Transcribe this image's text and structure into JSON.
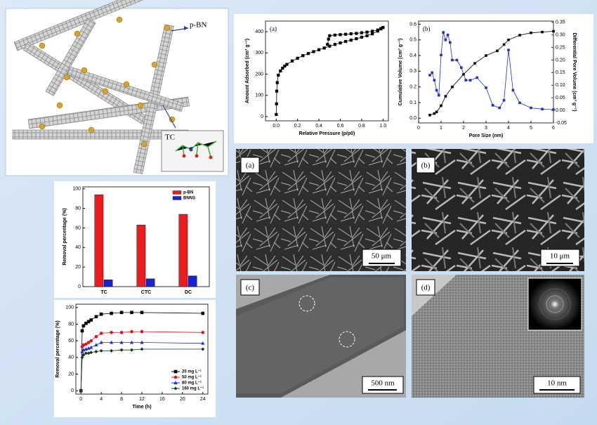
{
  "schematic": {
    "labels": [
      "p-BN",
      "TC"
    ]
  },
  "micrographs": [
    {
      "label": "(a)",
      "scale_bar": "50 μm"
    },
    {
      "label": "(b)",
      "scale_bar": "10 μm"
    },
    {
      "label": "(c)",
      "scale_bar": "500 nm"
    },
    {
      "label": "(d)",
      "scale_bar": "10 nm"
    }
  ],
  "chart_data": [
    {
      "type": "line",
      "label": "(a)",
      "xlabel": "Relative Pressure (p/p0)",
      "ylabel": "Amount Adsorbed (cm³ g⁻¹)",
      "xlim": [
        -0.1,
        1.05
      ],
      "xticks": [
        {
          "value": 0,
          "label": "0.0"
        },
        {
          "value": 0.2,
          "label": "0.2"
        },
        {
          "value": 0.4,
          "label": "0.4"
        },
        {
          "value": 0.6,
          "label": "0.6"
        },
        {
          "value": 0.8,
          "label": "0.8"
        },
        {
          "value": 1,
          "label": "1.0"
        }
      ],
      "ylim": [
        -20,
        450
      ],
      "yticks": [
        0,
        100,
        200,
        300,
        400
      ],
      "series": [
        {
          "color": "#000000",
          "marker": "square",
          "x": [
            0.001,
            0.003,
            0.005,
            0.01,
            0.02,
            0.04,
            0.06,
            0.08,
            0.1,
            0.15,
            0.2,
            0.25,
            0.3,
            0.35,
            0.4,
            0.45,
            0.5,
            0.55,
            0.6,
            0.65,
            0.7,
            0.75,
            0.8,
            0.85,
            0.9,
            0.95,
            0.98,
            1.0
          ],
          "values": [
            10,
            60,
            120,
            160,
            195,
            215,
            228,
            238,
            246,
            262,
            275,
            287,
            297,
            306,
            315,
            323,
            332,
            340,
            347,
            354,
            360,
            367,
            374,
            381,
            390,
            403,
            413,
            420
          ]
        },
        {
          "color": "#000000",
          "marker": "square",
          "x": [
            1.0,
            0.98,
            0.95,
            0.9,
            0.85,
            0.8,
            0.75,
            0.7,
            0.65,
            0.6,
            0.55,
            0.5,
            0.49,
            0.48
          ],
          "values": [
            420,
            415,
            408,
            402,
            398,
            395,
            392,
            390,
            388,
            386,
            384,
            381,
            365,
            340
          ]
        }
      ]
    },
    {
      "type": "line",
      "label": "(b)",
      "xlabel": "Pore Size (nm)",
      "ylabel": "Cumulative Volume (cm³ g⁻¹)",
      "y2label": "Differential Pore Volume (cm³ g⁻¹)",
      "xlim": [
        0,
        6
      ],
      "xticks": [
        0,
        1,
        2,
        3,
        4,
        5,
        6
      ],
      "ylim": [
        -0.03,
        0.62
      ],
      "yticks": [
        {
          "value": 0,
          "label": "0.0"
        },
        {
          "value": 0.1,
          "label": "0.1"
        },
        {
          "value": 0.2,
          "label": "0.2"
        },
        {
          "value": 0.3,
          "label": "0.3"
        },
        {
          "value": 0.4,
          "label": "0.4"
        },
        {
          "value": 0.5,
          "label": "0.5"
        },
        {
          "value": 0.6,
          "label": "0.6"
        }
      ],
      "y2lim": [
        -0.05,
        0.355
      ],
      "y2ticks": [
        {
          "value": -0.05,
          "label": "-0.05"
        },
        {
          "value": 0,
          "label": "0.00"
        },
        {
          "value": 0.05,
          "label": "0.05"
        },
        {
          "value": 0.1,
          "label": "0.10"
        },
        {
          "value": 0.15,
          "label": "0.15"
        },
        {
          "value": 0.2,
          "label": "0.20"
        },
        {
          "value": 0.25,
          "label": "0.25"
        },
        {
          "value": 0.3,
          "label": "0.30"
        },
        {
          "value": 0.35,
          "label": "0.35"
        }
      ],
      "series": [
        {
          "color": "#000000",
          "marker": "square",
          "x": [
            0.5,
            0.7,
            0.8,
            1.0,
            1.2,
            1.5,
            2.0,
            2.5,
            3.0,
            3.5,
            3.8,
            4.0,
            4.5,
            5.0,
            5.5,
            6.0
          ],
          "values": [
            0.02,
            0.03,
            0.04,
            0.08,
            0.14,
            0.2,
            0.28,
            0.35,
            0.4,
            0.43,
            0.47,
            0.5,
            0.53,
            0.545,
            0.55,
            0.555
          ]
        },
        {
          "color": "#1f2fd0",
          "marker": "square",
          "axis": "y2",
          "x": [
            0.5,
            0.6,
            0.7,
            0.8,
            0.9,
            1.0,
            1.1,
            1.2,
            1.3,
            1.4,
            1.5,
            1.7,
            1.9,
            2.1,
            2.3,
            2.6,
            3.0,
            3.3,
            3.6,
            3.8,
            4.0,
            4.2,
            4.5,
            5.0,
            5.5,
            6.0
          ],
          "values": [
            0.14,
            0.15,
            0.12,
            0.08,
            0.06,
            0.22,
            0.31,
            0.28,
            0.3,
            0.27,
            0.2,
            0.2,
            0.17,
            0.12,
            0.12,
            0.13,
            0.09,
            0.02,
            0.01,
            0.04,
            0.24,
            0.08,
            0.03,
            0.01,
            0.005,
            0.003
          ]
        }
      ]
    },
    {
      "type": "bar",
      "ylabel": "Removal percentage (%)",
      "categories": [
        "TC",
        "CTC",
        "DC"
      ],
      "ylim": [
        0,
        102
      ],
      "yticks": [
        0,
        20,
        40,
        60,
        80,
        100
      ],
      "legend": "upper right",
      "series": [
        {
          "name": "p-BN",
          "color": "#ee1c1c",
          "values": [
            94,
            63,
            74
          ]
        },
        {
          "name": "BNNS",
          "color": "#1524d8",
          "values": [
            7,
            8,
            11
          ]
        }
      ]
    },
    {
      "type": "line",
      "xlabel": "Time (h)",
      "ylabel": "Removal percentage (%)",
      "xlim": [
        -1,
        25
      ],
      "xticks": [
        0,
        4,
        8,
        12,
        16,
        20,
        24
      ],
      "ylim": [
        -4,
        104
      ],
      "yticks": [
        0,
        20,
        40,
        60,
        80,
        100
      ],
      "legend": "lower right",
      "series": [
        {
          "name": "20 mg L⁻¹",
          "color": "#000000",
          "marker": "square",
          "x": [
            0,
            0.25,
            0.5,
            1,
            1.5,
            2,
            3,
            4,
            6,
            8,
            10,
            12,
            24
          ],
          "values": [
            0,
            72,
            78,
            81,
            83,
            85,
            89,
            92,
            93,
            94,
            94,
            94,
            93
          ]
        },
        {
          "name": "50 mg L⁻¹",
          "color": "#e3141c",
          "marker": "circle",
          "x": [
            0,
            0.25,
            0.5,
            1,
            1.5,
            2,
            3,
            4,
            6,
            8,
            10,
            12,
            24
          ],
          "values": [
            0,
            53,
            55,
            56,
            58,
            60,
            65,
            69,
            70,
            70,
            71,
            71,
            70
          ]
        },
        {
          "name": "80 mg L⁻¹",
          "color": "#1a2ee0",
          "marker": "triangle",
          "x": [
            0,
            0.25,
            0.5,
            1,
            1.5,
            2,
            3,
            4,
            6,
            8,
            10,
            12,
            24
          ],
          "values": [
            0,
            47,
            49,
            50,
            51,
            52,
            55,
            58,
            58,
            58,
            58,
            58,
            57
          ]
        },
        {
          "name": "160 mg L⁻¹",
          "color": "#143c14",
          "marker": "diamond",
          "x": [
            0,
            0.25,
            0.5,
            1,
            1.5,
            2,
            3,
            4,
            6,
            8,
            10,
            12,
            24
          ],
          "values": [
            0,
            40,
            43,
            45,
            45,
            46,
            47,
            48,
            48,
            49,
            49,
            50,
            50
          ]
        }
      ]
    }
  ]
}
